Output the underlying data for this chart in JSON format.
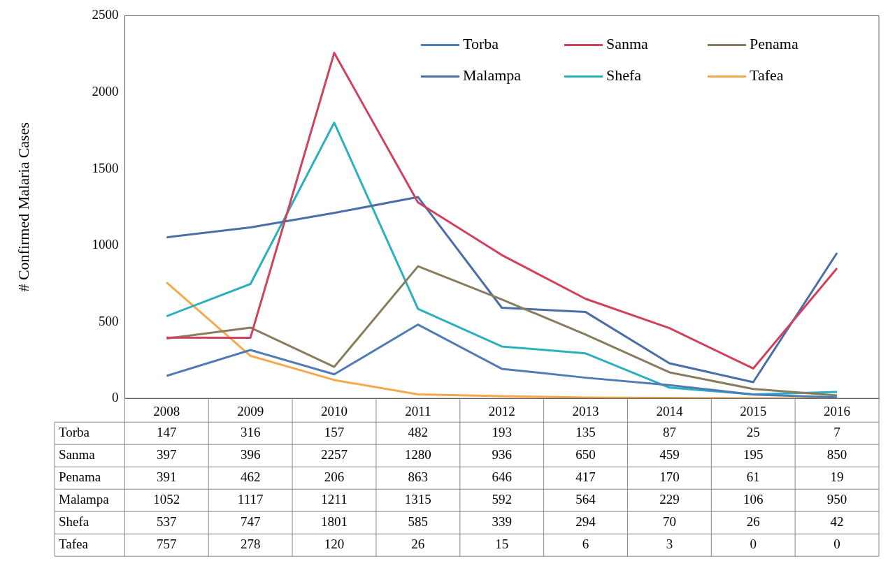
{
  "chart_data": {
    "type": "line",
    "ylabel": "# Confirmed Malaria Cases",
    "categories": [
      "2008",
      "2009",
      "2010",
      "2011",
      "2012",
      "2013",
      "2014",
      "2015",
      "2016"
    ],
    "series": [
      {
        "name": "Torba",
        "color": "#4f7cb5",
        "values": [
          147,
          316,
          157,
          482,
          193,
          135,
          87,
          25,
          7
        ]
      },
      {
        "name": "Sanma",
        "color": "#d2405e",
        "values": [
          397,
          396,
          2257,
          1280,
          936,
          650,
          459,
          195,
          850
        ]
      },
      {
        "name": "Penama",
        "color": "#877d5e",
        "values": [
          391,
          462,
          206,
          863,
          646,
          417,
          170,
          61,
          19
        ]
      },
      {
        "name": "Malampa",
        "color": "#4a6ea6",
        "values": [
          1052,
          1117,
          1211,
          1315,
          592,
          564,
          229,
          106,
          950
        ]
      },
      {
        "name": "Shefa",
        "color": "#2bb1bd",
        "values": [
          537,
          747,
          1801,
          585,
          339,
          294,
          70,
          26,
          42
        ]
      },
      {
        "name": "Tafea",
        "color": "#f5a94c",
        "values": [
          757,
          278,
          120,
          26,
          15,
          6,
          3,
          0,
          0
        ]
      }
    ],
    "ylim": [
      0,
      2500
    ],
    "yticks": [
      0,
      500,
      1000,
      1500,
      2000,
      2500
    ],
    "grid": false,
    "legend": "top right",
    "marker": "none",
    "line_style": "solid",
    "data_labels": true
  }
}
